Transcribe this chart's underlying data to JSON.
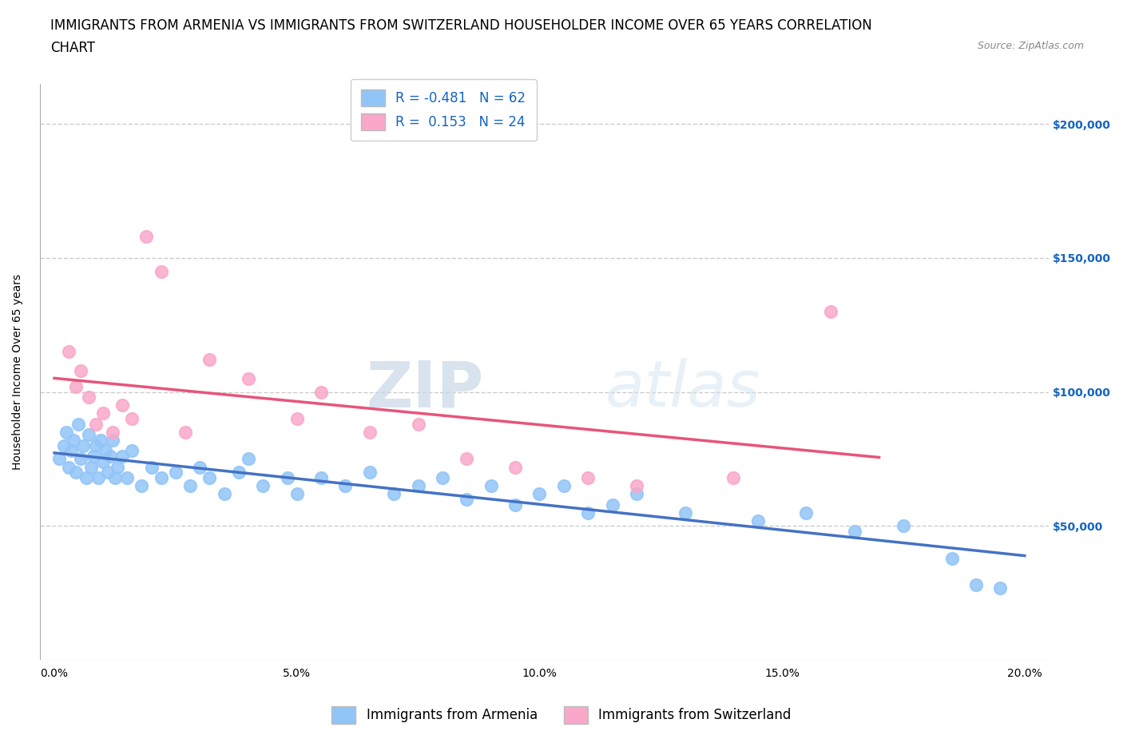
{
  "title_line1": "IMMIGRANTS FROM ARMENIA VS IMMIGRANTS FROM SWITZERLAND HOUSEHOLDER INCOME OVER 65 YEARS CORRELATION",
  "title_line2": "CHART",
  "source_text": "Source: ZipAtlas.com",
  "ylabel": "Householder Income Over 65 years",
  "ytick_labels": [
    "$50,000",
    "$100,000",
    "$150,000",
    "$200,000"
  ],
  "ytick_vals": [
    50000,
    100000,
    150000,
    200000
  ],
  "armenia_color": "#92C5F7",
  "armenia_line_color": "#4472C4",
  "switzerland_color": "#F9A8C9",
  "switzerland_line_color": "#E8547A",
  "r_armenia": -0.481,
  "n_armenia": 62,
  "r_switzerland": 0.153,
  "n_switzerland": 24,
  "watermark_zip": "ZIP",
  "watermark_atlas": "atlas",
  "armenia_x": [
    0.1,
    0.2,
    0.25,
    0.3,
    0.35,
    0.4,
    0.45,
    0.5,
    0.55,
    0.6,
    0.65,
    0.7,
    0.75,
    0.8,
    0.85,
    0.9,
    0.95,
    1.0,
    1.05,
    1.1,
    1.15,
    1.2,
    1.25,
    1.3,
    1.4,
    1.5,
    1.6,
    1.8,
    2.0,
    2.2,
    2.5,
    2.8,
    3.0,
    3.2,
    3.5,
    3.8,
    4.0,
    4.3,
    4.8,
    5.0,
    5.5,
    6.0,
    6.5,
    7.0,
    7.5,
    8.0,
    8.5,
    9.0,
    9.5,
    10.0,
    10.5,
    11.0,
    11.5,
    12.0,
    13.0,
    14.5,
    15.5,
    16.5,
    17.5,
    18.5,
    19.0,
    19.5
  ],
  "armenia_y": [
    75000,
    80000,
    85000,
    72000,
    78000,
    82000,
    70000,
    88000,
    75000,
    80000,
    68000,
    84000,
    72000,
    76000,
    80000,
    68000,
    82000,
    74000,
    78000,
    70000,
    76000,
    82000,
    68000,
    72000,
    76000,
    68000,
    78000,
    65000,
    72000,
    68000,
    70000,
    65000,
    72000,
    68000,
    62000,
    70000,
    75000,
    65000,
    68000,
    62000,
    68000,
    65000,
    70000,
    62000,
    65000,
    68000,
    60000,
    65000,
    58000,
    62000,
    65000,
    55000,
    58000,
    62000,
    55000,
    52000,
    55000,
    48000,
    50000,
    38000,
    28000,
    27000
  ],
  "switzerland_x": [
    0.3,
    0.45,
    0.55,
    0.7,
    0.85,
    1.0,
    1.2,
    1.4,
    1.6,
    1.9,
    2.2,
    2.7,
    3.2,
    4.0,
    5.0,
    5.5,
    6.5,
    7.5,
    8.5,
    9.5,
    11.0,
    12.0,
    14.0,
    16.0
  ],
  "switzerland_y": [
    115000,
    102000,
    108000,
    98000,
    88000,
    92000,
    85000,
    95000,
    90000,
    158000,
    145000,
    85000,
    112000,
    105000,
    90000,
    100000,
    85000,
    88000,
    75000,
    72000,
    68000,
    65000,
    68000,
    130000
  ],
  "xlim": [
    -0.3,
    20.5
  ],
  "ylim": [
    0,
    215000
  ],
  "grid_color": "#CCCCCC",
  "background_color": "#FFFFFF",
  "title_fontsize": 12,
  "axis_fontsize": 10,
  "tick_fontsize": 10,
  "legend_fontsize": 12
}
